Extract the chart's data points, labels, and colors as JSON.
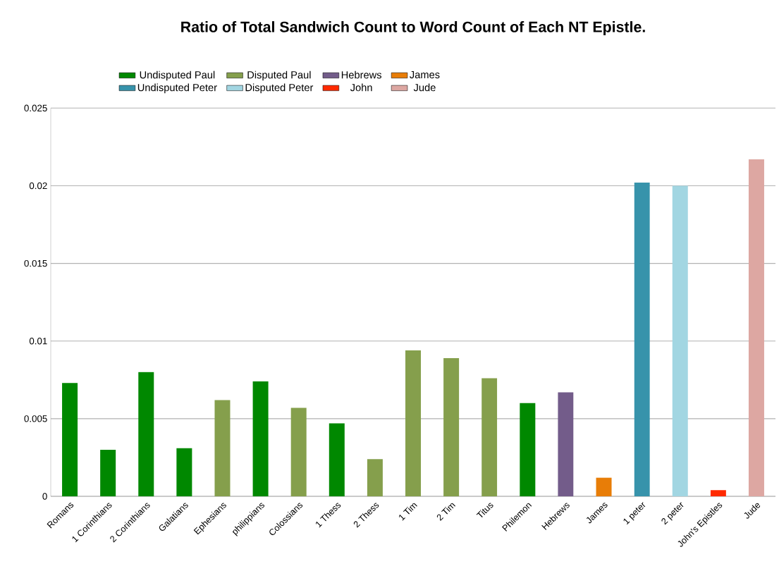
{
  "chart_data": {
    "type": "bar",
    "title": "Ratio of Total Sandwich Count to Word Count of Each NT Epistle.",
    "categories": [
      "Romans",
      "1 Corinthians",
      "2 Corinthians",
      "Galatians",
      "Ephesians",
      "philippians",
      "Colossians",
      "1 Thess",
      "2 Thess",
      "1 Tim",
      "2 Tim",
      "Titus",
      "Philemon",
      "Hebrews",
      "James",
      "1 peter",
      "2 peter",
      "John's Epistles",
      "Jude"
    ],
    "series": [
      {
        "name": "Undisputed Paul",
        "color": "#008800",
        "values": [
          0.0073,
          0.003,
          0.008,
          0.0031,
          null,
          0.0074,
          null,
          0.0047,
          null,
          null,
          null,
          null,
          0.006,
          null,
          null,
          null,
          null,
          null,
          null
        ]
      },
      {
        "name": "Disputed Paul",
        "color": "#859f4c",
        "values": [
          null,
          null,
          null,
          null,
          0.0062,
          null,
          0.0057,
          null,
          0.0024,
          0.0094,
          0.0089,
          0.0076,
          null,
          null,
          null,
          null,
          null,
          null,
          null
        ]
      },
      {
        "name": "Hebrews",
        "color": "#735c8a",
        "values": [
          null,
          null,
          null,
          null,
          null,
          null,
          null,
          null,
          null,
          null,
          null,
          null,
          null,
          0.0067,
          null,
          null,
          null,
          null,
          null
        ]
      },
      {
        "name": "James",
        "color": "#e87d07",
        "values": [
          null,
          null,
          null,
          null,
          null,
          null,
          null,
          null,
          null,
          null,
          null,
          null,
          null,
          null,
          0.0012,
          null,
          null,
          null,
          null
        ]
      },
      {
        "name": "Undisputed Peter",
        "color": "#3793ab",
        "values": [
          null,
          null,
          null,
          null,
          null,
          null,
          null,
          null,
          null,
          null,
          null,
          null,
          null,
          null,
          null,
          0.0202,
          null,
          null,
          null
        ]
      },
      {
        "name": "Disputed Peter",
        "color": "#a2d6e2",
        "values": [
          null,
          null,
          null,
          null,
          null,
          null,
          null,
          null,
          null,
          null,
          null,
          null,
          null,
          null,
          null,
          null,
          0.02,
          null,
          null
        ]
      },
      {
        "name": "John",
        "color": "#ff2a00",
        "values": [
          null,
          null,
          null,
          null,
          null,
          null,
          null,
          null,
          null,
          null,
          null,
          null,
          null,
          null,
          null,
          null,
          null,
          0.0004,
          null
        ]
      },
      {
        "name": "Jude",
        "color": "#dda7a2",
        "values": [
          null,
          null,
          null,
          null,
          null,
          null,
          null,
          null,
          null,
          null,
          null,
          null,
          null,
          null,
          null,
          null,
          null,
          null,
          0.0217
        ]
      }
    ],
    "stacked": true,
    "ylim": [
      0,
      0.025
    ],
    "yticks": [
      0,
      0.005,
      0.01,
      0.015,
      0.02,
      0.025
    ],
    "grid": "y",
    "legend": "top"
  }
}
